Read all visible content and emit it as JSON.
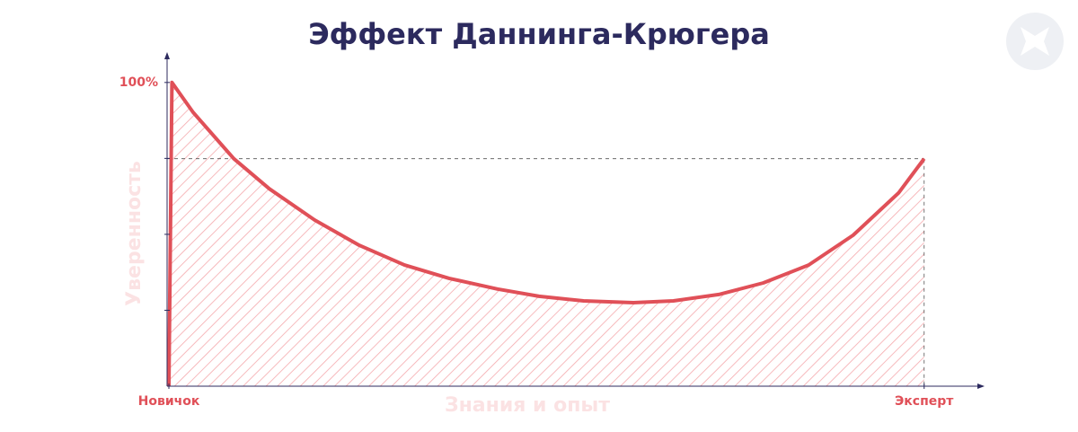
{
  "chart_data": {
    "type": "area",
    "title": "Эффект Даннинга-Крюгера",
    "y_label": "Уверенность",
    "x_label": "Знания и опыт",
    "x": [
      0,
      0.4,
      3.2,
      8.6,
      13.3,
      19.3,
      25.2,
      31.2,
      37.1,
      43.5,
      49,
      54.9,
      61.5,
      66.8,
      72.8,
      78.7,
      84.7,
      90.6,
      96.6,
      100
    ],
    "values": [
      0,
      100,
      90.2,
      74.9,
      65,
      54.7,
      46.4,
      39.9,
      35.5,
      32,
      29.6,
      28.1,
      27.5,
      28.1,
      30.2,
      34,
      39.9,
      49.7,
      63.6,
      74.9
    ],
    "color": "#e05058",
    "xlim": [
      0,
      108
    ],
    "ylim": [
      0,
      110
    ],
    "xticks": [
      {
        "value": 0,
        "label": "Новичок"
      },
      {
        "value": 100,
        "label": "Эксперт"
      }
    ],
    "yticks": [
      25,
      50,
      75,
      {
        "value": 100,
        "label": "100%"
      }
    ]
  }
}
